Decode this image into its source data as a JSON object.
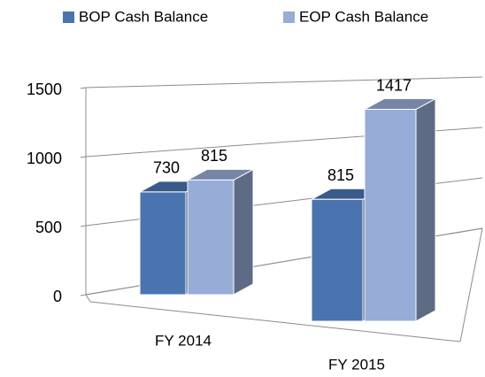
{
  "chart_data": {
    "type": "bar3d",
    "categories": [
      "FY 2014",
      "FY 2015"
    ],
    "series": [
      {
        "name": "BOP Cash Balance",
        "color": "#4a74b0",
        "values": [
          730,
          815
        ]
      },
      {
        "name": "EOP Cash Balance",
        "color": "#97acd6",
        "values": [
          815,
          1417
        ]
      }
    ],
    "ylim": [
      0,
      1500
    ],
    "yticks": [
      0,
      500,
      1000,
      1500
    ],
    "grid": true,
    "legend": "top"
  }
}
